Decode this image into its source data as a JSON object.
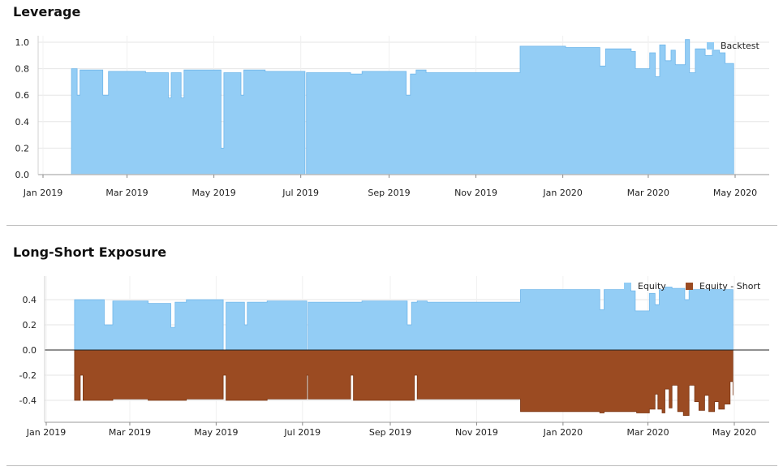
{
  "panels": {
    "leverage_title": "Leverage",
    "exposure_title": "Long-Short Exposure"
  },
  "colors": {
    "long": "#93cdf5",
    "long_edge": "#6fb6ea",
    "short": "#9b4b22",
    "short_edge": "#7a3512",
    "grid": "#e6e6e6",
    "axis": "#555555"
  },
  "chart_data": [
    {
      "type": "area",
      "title": "Leverage",
      "xlabel": "",
      "ylabel": "",
      "x_ticks": [
        "Jan 2019",
        "Mar 2019",
        "May 2019",
        "Jul 2019",
        "Sep 2019",
        "Nov 2019",
        "Jan 2020",
        "Mar 2020",
        "May 2020"
      ],
      "xlim": [
        "2019-01-01",
        "2020-05-01"
      ],
      "ylim": [
        0.0,
        1.0
      ],
      "y_ticks": [
        0.0,
        0.2,
        0.4,
        0.6,
        0.8,
        1.0
      ],
      "legend_position": "top-right",
      "series": [
        {
          "name": "Backtest",
          "points": [
            [
              "2019-01-21",
              0.8
            ],
            [
              "2019-01-25",
              0.6
            ],
            [
              "2019-01-27",
              0.79
            ],
            [
              "2019-02-12",
              0.6
            ],
            [
              "2019-02-16",
              0.78
            ],
            [
              "2019-03-14",
              0.77
            ],
            [
              "2019-03-30",
              0.58
            ],
            [
              "2019-04-01",
              0.77
            ],
            [
              "2019-04-08",
              0.58
            ],
            [
              "2019-04-10",
              0.79
            ],
            [
              "2019-05-06",
              0.2
            ],
            [
              "2019-05-08",
              0.77
            ],
            [
              "2019-05-20",
              0.6
            ],
            [
              "2019-05-22",
              0.79
            ],
            [
              "2019-06-06",
              0.78
            ],
            [
              "2019-07-04",
              0.0
            ],
            [
              "2019-07-05",
              0.77
            ],
            [
              "2019-08-05",
              0.76
            ],
            [
              "2019-08-13",
              0.78
            ],
            [
              "2019-08-31",
              0.78
            ],
            [
              "2019-09-13",
              0.6
            ],
            [
              "2019-09-16",
              0.76
            ],
            [
              "2019-09-20",
              0.79
            ],
            [
              "2019-09-27",
              0.77
            ],
            [
              "2019-10-27",
              0.77
            ],
            [
              "2019-12-02",
              0.97
            ],
            [
              "2020-01-03",
              0.96
            ],
            [
              "2020-01-27",
              0.82
            ],
            [
              "2020-01-31",
              0.95
            ],
            [
              "2020-02-18",
              0.93
            ],
            [
              "2020-02-21",
              0.8
            ],
            [
              "2020-03-02",
              0.92
            ],
            [
              "2020-03-06",
              0.74
            ],
            [
              "2020-03-09",
              0.98
            ],
            [
              "2020-03-13",
              0.86
            ],
            [
              "2020-03-17",
              0.94
            ],
            [
              "2020-03-20",
              0.83
            ],
            [
              "2020-03-27",
              1.02
            ],
            [
              "2020-03-30",
              0.77
            ],
            [
              "2020-04-03",
              0.95
            ],
            [
              "2020-04-10",
              0.9
            ],
            [
              "2020-04-15",
              0.94
            ],
            [
              "2020-04-20",
              0.92
            ],
            [
              "2020-04-24",
              0.84
            ],
            [
              "2020-04-30",
              0.84
            ]
          ]
        }
      ]
    },
    {
      "type": "area",
      "title": "Long-Short Exposure",
      "xlabel": "",
      "ylabel": "",
      "x_ticks": [
        "Jan 2019",
        "Mar 2019",
        "May 2019",
        "Jul 2019",
        "Sep 2019",
        "Nov 2019",
        "Jan 2020",
        "Mar 2020",
        "May 2020"
      ],
      "xlim": [
        "2019-01-01",
        "2020-05-01"
      ],
      "ylim": [
        -0.5,
        0.5
      ],
      "y_ticks": [
        -0.4,
        -0.2,
        0.0,
        0.2,
        0.4
      ],
      "legend_position": "top-right",
      "series": [
        {
          "name": "Equity",
          "points": [
            [
              "2019-01-21",
              0.4
            ],
            [
              "2019-02-11",
              0.2
            ],
            [
              "2019-02-17",
              0.39
            ],
            [
              "2019-03-14",
              0.37
            ],
            [
              "2019-03-30",
              0.18
            ],
            [
              "2019-04-02",
              0.38
            ],
            [
              "2019-04-10",
              0.4
            ],
            [
              "2019-05-06",
              0.0
            ],
            [
              "2019-05-08",
              0.38
            ],
            [
              "2019-05-21",
              0.2
            ],
            [
              "2019-05-23",
              0.38
            ],
            [
              "2019-06-06",
              0.39
            ],
            [
              "2019-07-04",
              0.0
            ],
            [
              "2019-07-05",
              0.38
            ],
            [
              "2019-08-04",
              0.38
            ],
            [
              "2019-08-12",
              0.39
            ],
            [
              "2019-08-30",
              0.39
            ],
            [
              "2019-09-13",
              0.2
            ],
            [
              "2019-09-16",
              0.38
            ],
            [
              "2019-09-20",
              0.39
            ],
            [
              "2019-09-27",
              0.38
            ],
            [
              "2019-10-27",
              0.38
            ],
            [
              "2019-12-02",
              0.48
            ],
            [
              "2020-01-03",
              0.48
            ],
            [
              "2020-01-27",
              0.32
            ],
            [
              "2020-01-30",
              0.48
            ],
            [
              "2020-02-18",
              0.47
            ],
            [
              "2020-02-21",
              0.31
            ],
            [
              "2020-03-02",
              0.45
            ],
            [
              "2020-03-06",
              0.36
            ],
            [
              "2020-03-09",
              0.48
            ],
            [
              "2020-03-13",
              0.5
            ],
            [
              "2020-03-18",
              0.49
            ],
            [
              "2020-03-27",
              0.4
            ],
            [
              "2020-03-30",
              0.48
            ],
            [
              "2020-04-30",
              0.48
            ]
          ]
        },
        {
          "name": "Equity - Short",
          "points": [
            [
              "2019-01-21",
              -0.4
            ],
            [
              "2019-01-25",
              -0.2
            ],
            [
              "2019-01-27",
              -0.4
            ],
            [
              "2019-02-17",
              -0.39
            ],
            [
              "2019-03-14",
              -0.4
            ],
            [
              "2019-04-02",
              -0.4
            ],
            [
              "2019-04-10",
              -0.39
            ],
            [
              "2019-05-06",
              -0.2
            ],
            [
              "2019-05-08",
              -0.4
            ],
            [
              "2019-05-23",
              -0.4
            ],
            [
              "2019-06-06",
              -0.39
            ],
            [
              "2019-07-04",
              -0.2
            ],
            [
              "2019-07-05",
              -0.39
            ],
            [
              "2019-08-04",
              -0.2
            ],
            [
              "2019-08-06",
              -0.4
            ],
            [
              "2019-08-30",
              -0.4
            ],
            [
              "2019-09-18",
              -0.2
            ],
            [
              "2019-09-20",
              -0.39
            ],
            [
              "2019-09-27",
              -0.39
            ],
            [
              "2019-10-27",
              -0.39
            ],
            [
              "2019-12-02",
              -0.49
            ],
            [
              "2020-01-03",
              -0.49
            ],
            [
              "2020-01-27",
              -0.5
            ],
            [
              "2020-01-30",
              -0.49
            ],
            [
              "2020-02-18",
              -0.49
            ],
            [
              "2020-02-22",
              -0.5
            ],
            [
              "2020-03-02",
              -0.47
            ],
            [
              "2020-03-06",
              -0.35
            ],
            [
              "2020-03-08",
              -0.47
            ],
            [
              "2020-03-11",
              -0.5
            ],
            [
              "2020-03-13",
              -0.31
            ],
            [
              "2020-03-16",
              -0.46
            ],
            [
              "2020-03-18",
              -0.28
            ],
            [
              "2020-03-22",
              -0.49
            ],
            [
              "2020-03-26",
              -0.52
            ],
            [
              "2020-03-30",
              -0.28
            ],
            [
              "2020-04-03",
              -0.41
            ],
            [
              "2020-04-06",
              -0.48
            ],
            [
              "2020-04-10",
              -0.36
            ],
            [
              "2020-04-13",
              -0.49
            ],
            [
              "2020-04-17",
              -0.41
            ],
            [
              "2020-04-20",
              -0.47
            ],
            [
              "2020-04-24",
              -0.43
            ],
            [
              "2020-04-28",
              -0.25
            ],
            [
              "2020-04-30",
              -0.36
            ]
          ]
        }
      ]
    }
  ]
}
